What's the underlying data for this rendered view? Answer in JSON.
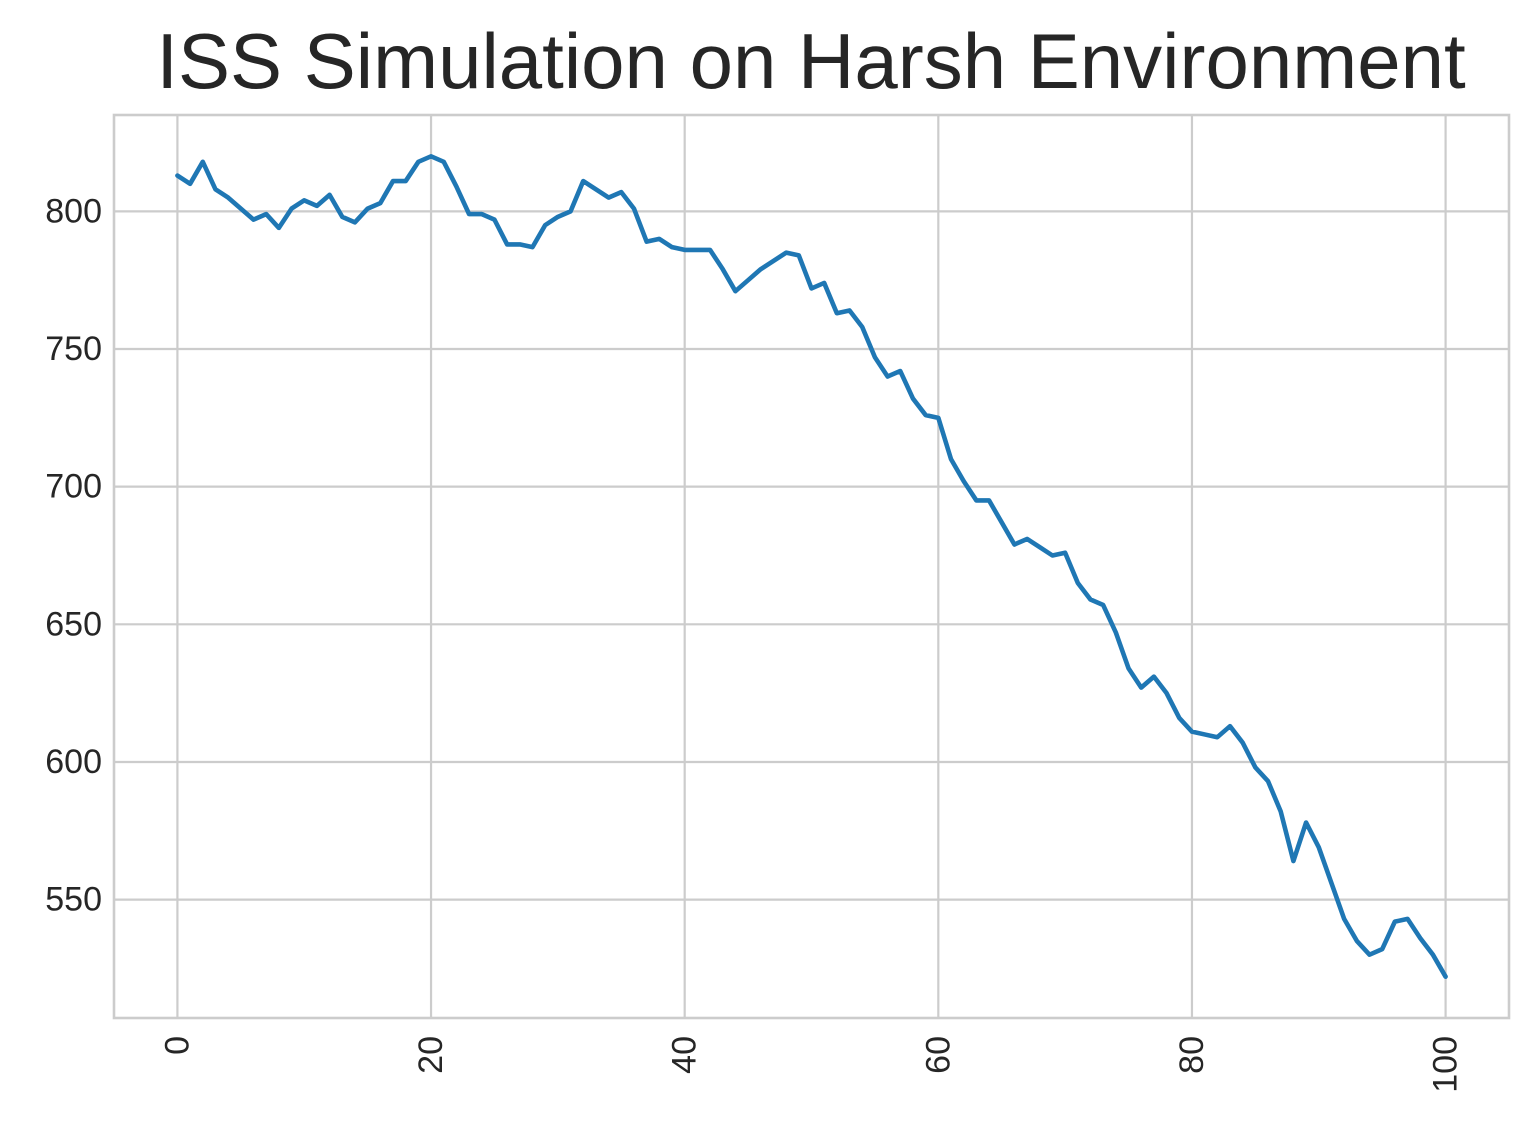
{
  "chart_data": {
    "type": "line",
    "title": "ISS Simulation on Harsh Environment",
    "xlabel": "",
    "ylabel": "",
    "xlim": [
      -5,
      105
    ],
    "ylim": [
      507,
      835
    ],
    "grid": true,
    "x_ticks": [
      0,
      20,
      40,
      60,
      80,
      100
    ],
    "x_tick_labels": [
      "0",
      "20",
      "40",
      "60",
      "80",
      "100"
    ],
    "x_tick_rotation": 90,
    "y_ticks": [
      550,
      600,
      650,
      700,
      750,
      800
    ],
    "y_tick_labels": [
      "550",
      "600",
      "650",
      "700",
      "750",
      "800"
    ],
    "line_color": "#1f77b4",
    "series": [
      {
        "x": [
          0,
          1,
          2,
          3,
          4,
          5,
          6,
          7,
          8,
          9,
          10,
          11,
          12,
          13,
          14,
          15,
          16,
          17,
          18,
          19,
          20,
          21,
          22,
          23,
          24,
          25,
          26,
          27,
          28,
          29,
          30,
          31,
          32,
          33,
          34,
          35,
          36,
          37,
          38,
          39,
          40,
          41,
          42,
          43,
          44,
          45,
          46,
          47,
          48,
          49,
          50,
          51,
          52,
          53,
          54,
          55,
          56,
          57,
          58,
          59,
          60,
          61,
          62,
          63,
          64,
          65,
          66,
          67,
          68,
          69,
          70,
          71,
          72,
          73,
          74,
          75,
          76,
          77,
          78,
          79,
          80,
          81,
          82,
          83,
          84,
          85,
          86,
          87,
          88,
          89,
          90,
          91,
          92,
          93,
          94,
          95,
          96,
          97,
          98,
          99,
          100
        ],
        "values": [
          813,
          810,
          818,
          808,
          805,
          801,
          797,
          799,
          794,
          801,
          804,
          802,
          806,
          798,
          796,
          801,
          803,
          811,
          811,
          818,
          820,
          818,
          809,
          799,
          799,
          797,
          788,
          788,
          787,
          795,
          798,
          800,
          811,
          808,
          805,
          807,
          801,
          789,
          790,
          787,
          786,
          786,
          786,
          779,
          771,
          775,
          779,
          782,
          785,
          784,
          772,
          774,
          763,
          764,
          758,
          747,
          740,
          742,
          732,
          726,
          725,
          710,
          702,
          695,
          695,
          687,
          679,
          681,
          678,
          675,
          676,
          665,
          659,
          657,
          647,
          634,
          627,
          631,
          625,
          616,
          611,
          610,
          609,
          613,
          607,
          598,
          593,
          582,
          564,
          578,
          569,
          556,
          543,
          535,
          530,
          532,
          542,
          543,
          536,
          530,
          522
        ]
      }
    ]
  }
}
